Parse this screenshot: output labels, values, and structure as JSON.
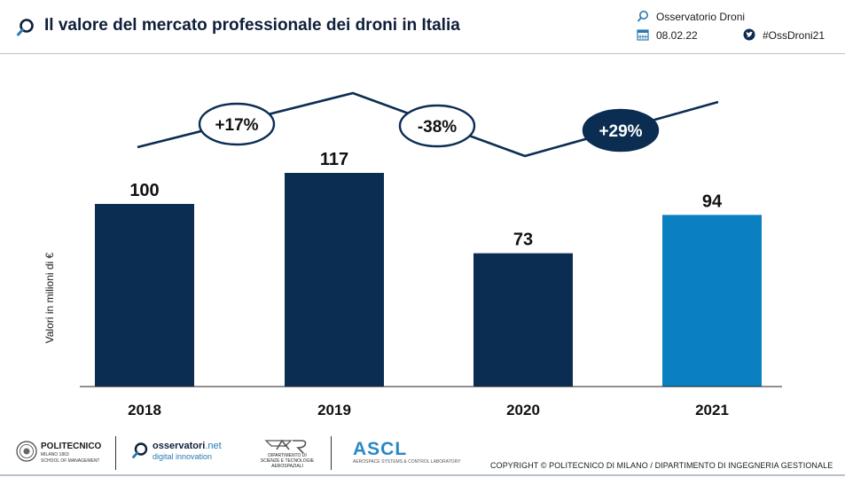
{
  "header": {
    "title": "Il valore del mercato professionale dei droni in Italia",
    "observatory": "Osservatorio Droni",
    "date": "08.02.22",
    "hashtag": "#OssDroni21"
  },
  "chart_data": {
    "type": "bar",
    "title": "Il valore del mercato professionale dei droni in Italia",
    "categories": [
      "2018",
      "2019",
      "2020",
      "2021"
    ],
    "values": [
      100,
      117,
      73,
      94
    ],
    "value_labels": [
      "100",
      "117",
      "73",
      "94"
    ],
    "bar_colors": [
      "#0b2d52",
      "#0b2d52",
      "#0b2d52",
      "#0a7fc2"
    ],
    "ylabel": "Valori in milioni di €",
    "xlabel": "",
    "ylim": [
      0,
      117
    ],
    "grid": false,
    "growth_annotations": [
      {
        "label": "+17%",
        "style": "outline"
      },
      {
        "label": "-38%",
        "style": "outline"
      },
      {
        "label": "+29%",
        "style": "filled"
      }
    ]
  },
  "footer": {
    "polimi_name": "POLITECNICO",
    "polimi_sub1": "MILANO 1863",
    "polimi_sub2": "SCHOOL OF MANAGEMENT",
    "osservatori_main": "osservatori",
    "osservatori_net": ".net",
    "osservatori_sub": "digital innovation",
    "dept_line1": "DIPARTIMENTO DI",
    "dept_line2": "SCIENZE E TECNOLOGIE",
    "dept_line3": "AEROSPAZIALI",
    "ascl_name": "ASCL",
    "ascl_sub": "AEROSPACE SYSTEMS & CONTROL LABORATORY",
    "copyright": "COPYRIGHT © POLITECNICO DI MILANO / DIPARTIMENTO DI INGEGNERIA GESTIONALE"
  },
  "colors": {
    "navy": "#0b2d52",
    "accent_blue": "#0a7fc2",
    "icon_blue": "#2a7ab0"
  }
}
